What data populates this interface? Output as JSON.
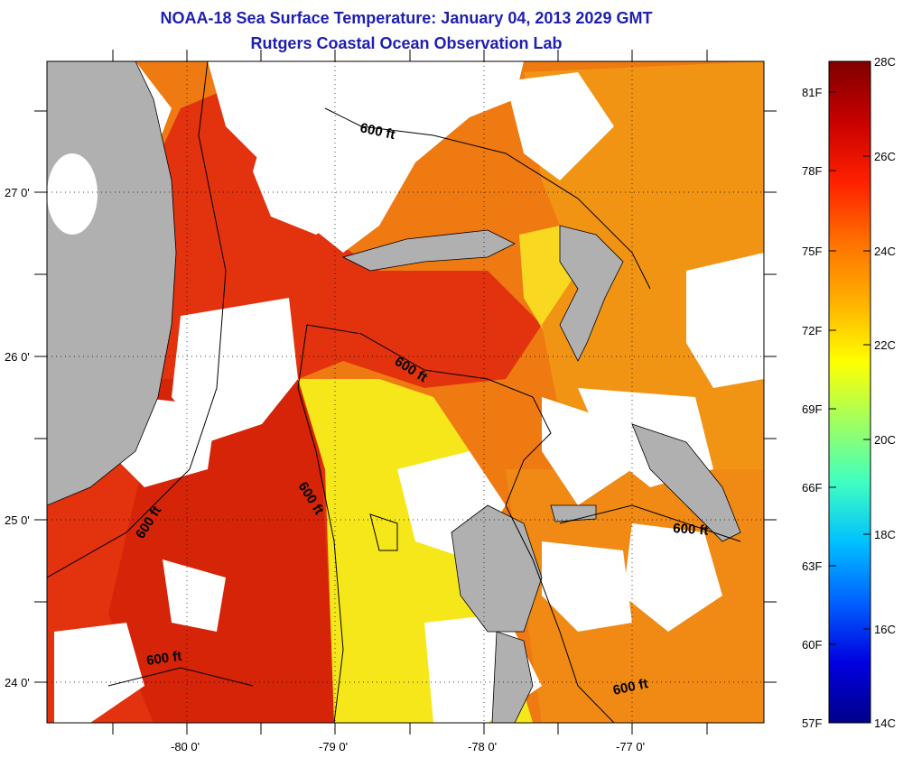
{
  "title": "NOAA-18 Sea Surface Temperature:  January 04, 2013 2029 GMT",
  "subtitle": "Rutgers Coastal Ocean Observation Lab",
  "axes": {
    "lat_labels": [
      "27 0'",
      "26 0'",
      "25 0'",
      "24 0'"
    ],
    "lon_labels": [
      "-80 0'",
      "-79 0'",
      "-78 0'",
      "-77 0'"
    ]
  },
  "contour_labels": [
    "600 ft",
    "600 ft",
    "600 ft",
    "600 ft",
    "600 ft",
    "600 ft"
  ],
  "colorbar": {
    "fahrenheit_labels": [
      "81F",
      "78F",
      "75F",
      "72F",
      "69F",
      "66F",
      "63F",
      "60F",
      "57F"
    ],
    "celsius_labels": [
      "28C",
      "26C",
      "24C",
      "22C",
      "20C",
      "18C",
      "16C",
      "14C"
    ],
    "gradient_colors": [
      "#800000",
      "#c80000",
      "#ff2000",
      "#ff7000",
      "#ffb000",
      "#ffff00",
      "#a0ff60",
      "#40ffc0",
      "#00c0ff",
      "#0060ff",
      "#0000e0",
      "#00008a"
    ]
  },
  "colors": {
    "land": "#b0b0b0",
    "cloud": "#ffffff",
    "warm_red": "#e53010",
    "orange": "#f07a10",
    "yellow": "#f7e81a"
  }
}
